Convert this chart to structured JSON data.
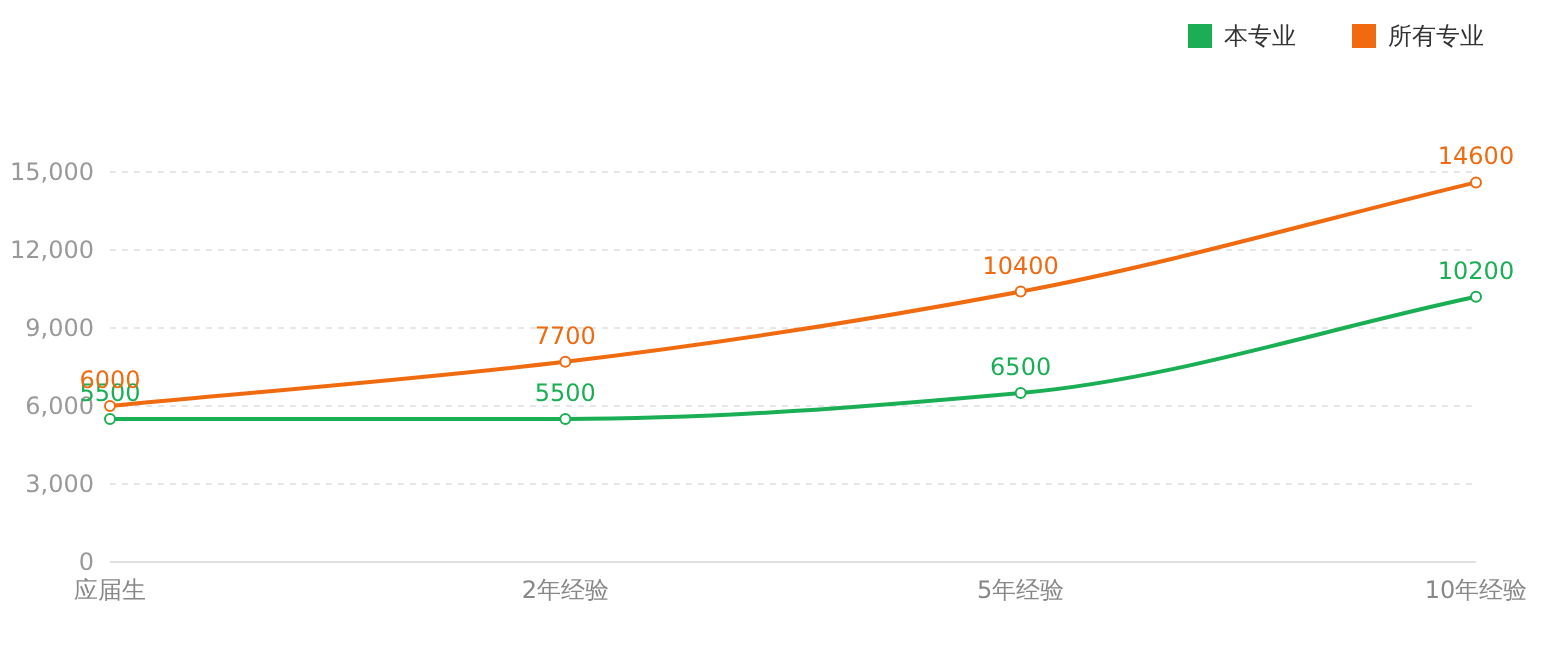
{
  "chart_data": {
    "type": "line",
    "categories": [
      "应届生",
      "2年经验",
      "5年经验",
      "10年经验"
    ],
    "series": [
      {
        "name": "本专业",
        "color": "#1aaf54",
        "values": [
          5500,
          5500,
          6500,
          10200
        ]
      },
      {
        "name": "所有专业",
        "color": "#f06a10",
        "values": [
          6000,
          7700,
          10400,
          14600
        ]
      }
    ],
    "ylim": [
      0,
      15000
    ],
    "yticks": [
      0,
      {
        "value": 3000,
        "label": "3,000"
      },
      {
        "value": 6000,
        "label": "6,000"
      },
      {
        "value": 9000,
        "label": "9,000"
      },
      {
        "value": 12000,
        "label": "12,000"
      },
      {
        "value": 15000,
        "label": "15,000"
      }
    ],
    "grid": "y",
    "legend": "top right",
    "marker": "circle",
    "data_labels": true
  }
}
